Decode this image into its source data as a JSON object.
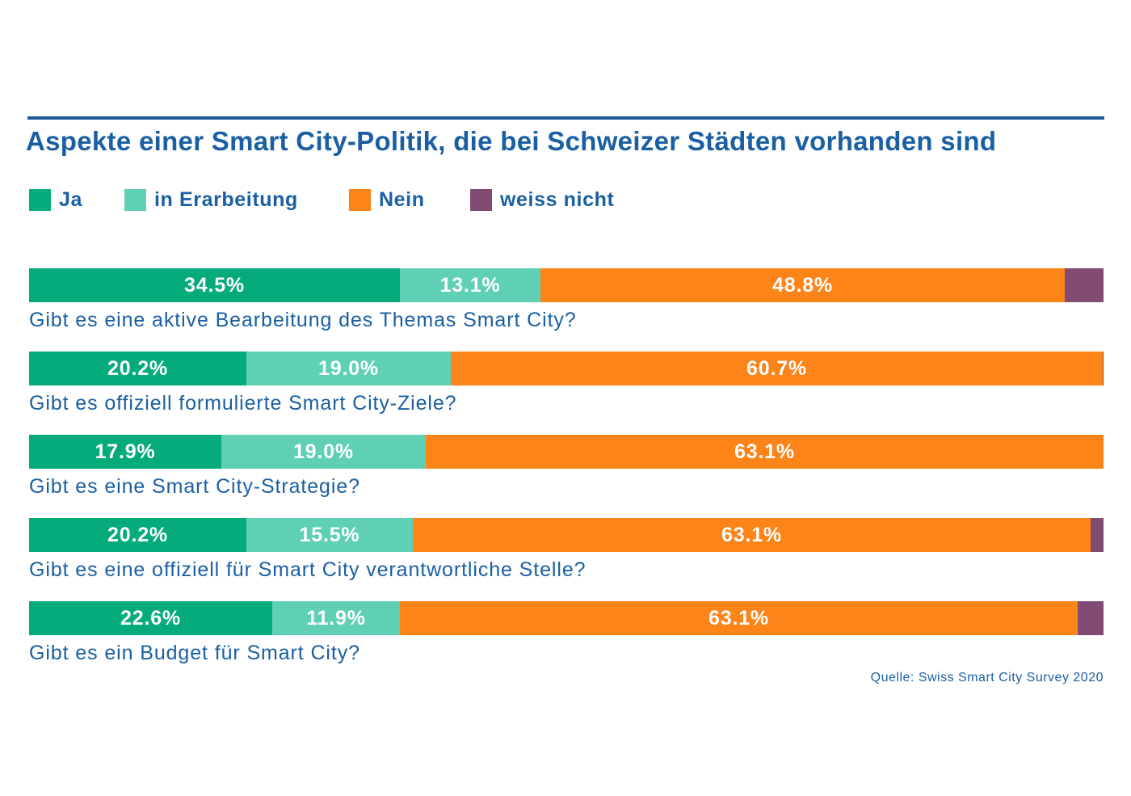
{
  "chart_data": {
    "type": "bar",
    "orientation": "horizontal",
    "stacked": true,
    "title": "Aspekte einer Smart City-Politik, die bei Schweizer Städten vorhanden sind",
    "legend_position": "top-left",
    "grid": false,
    "xlim": [
      0,
      100
    ],
    "categories": [
      "Gibt es eine aktive Bearbeitung des Themas Smart City?",
      "Gibt es offiziell formulierte Smart City-Ziele?",
      "Gibt es eine Smart City-Strategie?",
      "Gibt es eine offiziell für Smart City verantwortliche Stelle?",
      "Gibt es ein Budget für Smart City?"
    ],
    "series": [
      {
        "name": "Ja",
        "color": "#06ab7c",
        "values": [
          34.5,
          20.2,
          17.9,
          20.2,
          22.6
        ],
        "labels": [
          "34.5%",
          "20.2%",
          "17.9%",
          "20.2%",
          "22.6%"
        ]
      },
      {
        "name": "in Erarbeitung",
        "color": "#5fd0b3",
        "values": [
          13.1,
          19.0,
          19.0,
          15.5,
          11.9
        ],
        "labels": [
          "13.1%",
          "19.0%",
          "19.0%",
          "15.5%",
          "11.9%"
        ]
      },
      {
        "name": "Nein",
        "color": "#fc8419",
        "values": [
          48.8,
          60.7,
          63.1,
          63.1,
          63.1
        ],
        "labels": [
          "48.8%",
          "60.7%",
          "63.1%",
          "63.1%",
          "63.1%"
        ]
      },
      {
        "name": "weiss nicht",
        "color": "#824b74",
        "values": [
          3.6,
          0.1,
          0.0,
          1.2,
          2.4
        ],
        "labels": [
          "",
          "",
          "",
          "",
          ""
        ]
      }
    ]
  },
  "source": "Quelle: Swiss Smart City Survey 2020"
}
